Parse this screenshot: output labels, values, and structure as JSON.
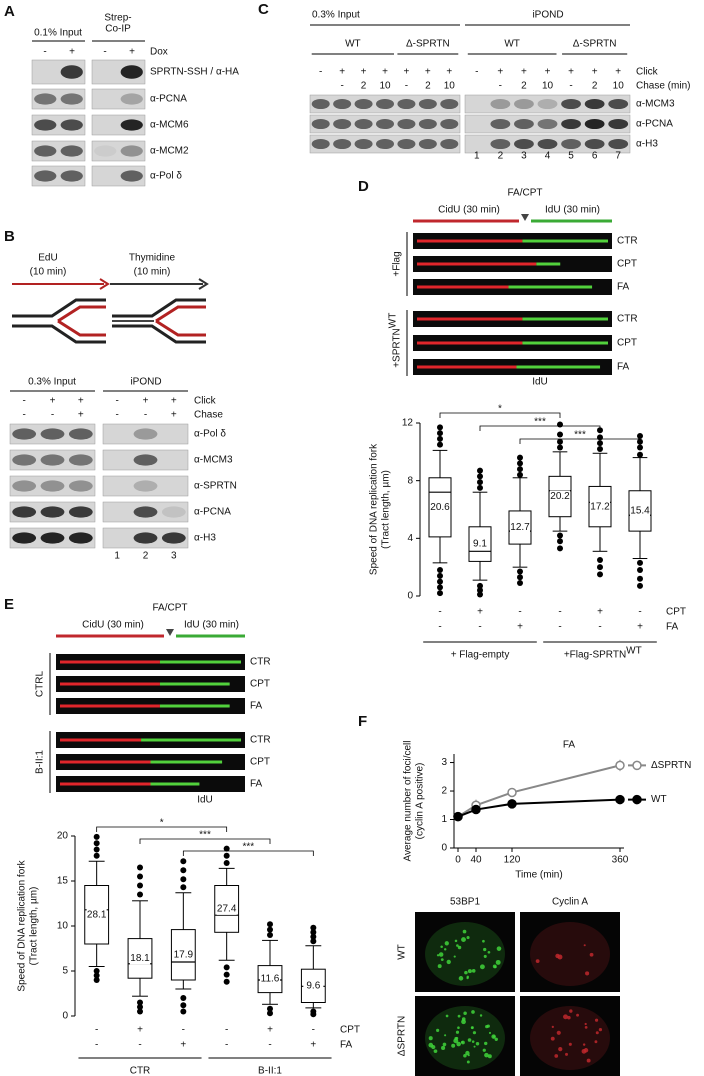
{
  "panel_a": {
    "label": "A",
    "input": "0.1% Input",
    "coip": [
      "Strep-",
      "Co-IP"
    ],
    "dox_label": "Dox",
    "dox": [
      "-",
      "+",
      "-",
      "+"
    ],
    "blots": [
      "SPRTN-SSH / α-HA",
      "α-PCNA",
      "α-MCM6",
      "α-MCM2",
      "α-Pol δ"
    ]
  },
  "panel_b": {
    "label": "B",
    "edu": [
      "EdU",
      "(10 min)"
    ],
    "thymidine": [
      "Thymidine",
      "(10 min)"
    ],
    "input": "0.3% Input",
    "ipond": "iPOND",
    "click_label": "Click",
    "chase_label": "Chase",
    "click": [
      "-",
      "+",
      "+",
      "-",
      "+",
      "+"
    ],
    "chase": [
      "-",
      "-",
      "+",
      "-",
      "-",
      "+"
    ],
    "blots": [
      "α-Pol δ",
      "α-MCM3",
      "α-SPRTN",
      "α-PCNA",
      "α-H3"
    ],
    "lanes": [
      "1",
      "2",
      "3"
    ]
  },
  "panel_c": {
    "label": "C",
    "input": "0.3% Input",
    "ipond": "iPOND",
    "groups": [
      "WT",
      "Δ-SPRTN",
      "WT",
      "Δ-SPRTN"
    ],
    "click_label": "Click",
    "chase_label": "Chase (min)",
    "click": [
      "-",
      "+",
      "+",
      "+",
      "+",
      "+",
      "+",
      "-",
      "+",
      "+",
      "+",
      "+",
      "+",
      "+"
    ],
    "chase": [
      null,
      "-",
      "2",
      "10",
      "-",
      "2",
      "10",
      null,
      "-",
      "2",
      "10",
      "-",
      "2",
      "10"
    ],
    "blots": [
      "α-MCM3",
      "α-PCNA",
      "α-H3"
    ],
    "lanes": [
      "1",
      "2",
      "3",
      "4",
      "5",
      "6",
      "7"
    ]
  },
  "panel_d": {
    "label": "D",
    "treatment": "FA/CPT",
    "cidu": "CidU (30 min)",
    "idu": "IdU (30 min)",
    "fiber_rows": [
      "CTR",
      "CPT",
      "FA",
      "CTR",
      "CPT",
      "FA"
    ],
    "fiber_groups": [
      {
        "text": "+Flag"
      },
      {
        "text": "+SPRTN",
        "sup": "WT"
      }
    ],
    "chart": {
      "type": "box",
      "title": "IdU",
      "title_color": "#3a9a3a",
      "box_label_color": "#3a9a3a",
      "ylabel": [
        "Speed of DNA replication fork",
        "(Tract length, µm)"
      ],
      "ylim": [
        0,
        12
      ],
      "yticks": [
        0,
        4,
        8,
        12
      ],
      "row_labels": [
        "CPT",
        "FA"
      ],
      "rows": [
        [
          "-",
          "+",
          "-",
          "-",
          "+",
          "-"
        ],
        [
          "-",
          "-",
          "+",
          "-",
          "-",
          "+"
        ]
      ],
      "groups": [
        {
          "text": "+ Flag-empty"
        },
        {
          "text": "+Flag-SPRTN",
          "sup": "WT"
        }
      ],
      "whisker_low": [
        2.3,
        1.1,
        2.0,
        4.5,
        3.1,
        2.6
      ],
      "q1": [
        4.1,
        2.4,
        3.6,
        5.5,
        4.8,
        4.5
      ],
      "median": [
        7.2,
        3.1,
        4.5,
        7.3,
        6.5,
        5.6
      ],
      "q3": [
        8.2,
        4.8,
        5.9,
        8.3,
        7.6,
        7.3
      ],
      "whisker_high": [
        10.1,
        7.2,
        8.2,
        10.0,
        9.9,
        9.6
      ],
      "outliers": [
        [
          0.2,
          0.6,
          1.0,
          1.4,
          1.8,
          10.5,
          10.9,
          11.3,
          11.7
        ],
        [
          0.1,
          0.4,
          0.7,
          7.5,
          7.9,
          8.3,
          8.7
        ],
        [
          0.9,
          1.3,
          1.7,
          8.4,
          8.8,
          9.2,
          9.6
        ],
        [
          3.3,
          3.8,
          4.2,
          10.3,
          10.7,
          11.2,
          11.9
        ],
        [
          1.5,
          2.0,
          2.5,
          10.2,
          10.6,
          11.0,
          11.5
        ],
        [
          0.7,
          1.2,
          1.8,
          2.3,
          9.8,
          10.3,
          10.7,
          11.1
        ]
      ],
      "annotations": [
        20.6,
        9.1,
        12.7,
        20.2,
        17.2,
        15.4
      ],
      "significance": [
        "*",
        "***",
        "***"
      ]
    }
  },
  "panel_e": {
    "label": "E",
    "treatment": "FA/CPT",
    "cidu": "CidU (30 min)",
    "idu": "IdU (30 min)",
    "fiber_rows": [
      "CTR",
      "CPT",
      "FA",
      "CTR",
      "CPT",
      "FA"
    ],
    "fiber_groups": [
      {
        "text": "CTRL"
      },
      {
        "text": "B-II:1"
      }
    ],
    "chart": {
      "type": "box",
      "title": "IdU",
      "title_color": "#3a9a3a",
      "box_label_color": "#3a9a3a",
      "ylabel": [
        "Speed of DNA replication fork",
        "(Tract length, µm)"
      ],
      "ylim": [
        0,
        20
      ],
      "yticks": [
        0,
        5,
        10,
        15,
        20
      ],
      "row_labels": [
        "CPT",
        "FA"
      ],
      "rows": [
        [
          "-",
          "+",
          "-",
          "-",
          "+",
          "-"
        ],
        [
          "-",
          "-",
          "+",
          "-",
          "-",
          "+"
        ]
      ],
      "groups": [
        {
          "text": "CTR"
        },
        {
          "text": "B-II:1"
        }
      ],
      "whisker_low": [
        5.5,
        2.2,
        3.0,
        6.2,
        1.3,
        0.9
      ],
      "q1": [
        8.0,
        4.2,
        4.0,
        9.3,
        2.6,
        1.5
      ],
      "median": [
        11.8,
        5.8,
        6.0,
        11.2,
        4.0,
        3.3
      ],
      "q3": [
        14.5,
        8.6,
        9.6,
        14.5,
        5.6,
        5.2
      ],
      "whisker_high": [
        17.2,
        12.8,
        13.7,
        16.4,
        8.4,
        7.8
      ],
      "outliers": [
        [
          4.0,
          4.5,
          5.0,
          17.8,
          18.5,
          19.2,
          19.9
        ],
        [
          0.5,
          1.0,
          1.5,
          13.5,
          14.5,
          15.5,
          16.5
        ],
        [
          0.5,
          1.2,
          2.0,
          14.3,
          15.2,
          16.2,
          17.2
        ],
        [
          3.8,
          4.6,
          5.4,
          17.0,
          17.8,
          18.6
        ],
        [
          0.3,
          0.8,
          9.0,
          9.6,
          10.2
        ],
        [
          0.2,
          0.5,
          8.3,
          8.8,
          9.3,
          9.8
        ]
      ],
      "annotations": [
        28.1,
        18.1,
        17.9,
        27.4,
        11.6,
        9.6
      ],
      "significance": [
        "*",
        "***",
        "***"
      ]
    }
  },
  "panel_f": {
    "label": "F",
    "chart": {
      "type": "line",
      "title": "FA",
      "ylabel": [
        "Average number of foci/cell",
        "(cyclin A positive)"
      ],
      "xlabel": "Time (min)",
      "x": [
        0,
        40,
        120,
        360
      ],
      "xlim": [
        0,
        360
      ],
      "xticks": [
        0,
        40,
        120,
        360
      ],
      "ylim": [
        0,
        3.3
      ],
      "yticks": [
        0,
        1,
        2,
        3
      ],
      "series": [
        {
          "name": "ΔSPRTN",
          "color": "#888888",
          "values": [
            1.1,
            1.5,
            1.95,
            2.9
          ],
          "errors": [
            0.1,
            0.2,
            0.15,
            0.2
          ]
        },
        {
          "name": "WT",
          "color": "#000000",
          "values": [
            1.1,
            1.35,
            1.55,
            1.7
          ],
          "errors": [
            0.1,
            0.15,
            0.12,
            0.15
          ]
        }
      ]
    },
    "image_columns": [
      "53BP1",
      "Cyclin A"
    ],
    "image_rows": [
      "WT",
      "ΔSPRTN"
    ]
  }
}
